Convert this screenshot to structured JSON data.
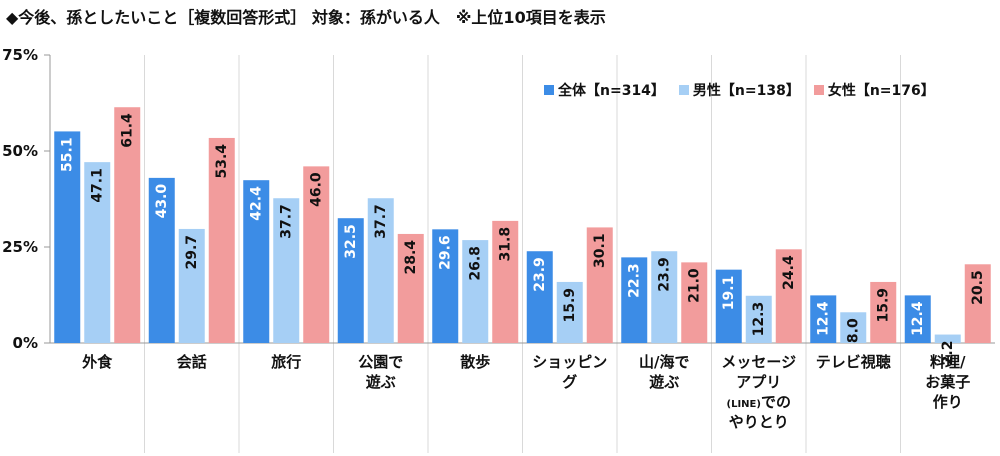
{
  "title": "◆今後、孫としたいこと［複数回答形式］ 対象：孫がいる人　※上位10項目を表示",
  "colors": {
    "series": [
      "#3c8ce6",
      "#a6cff5",
      "#f29c9c"
    ],
    "label_on_dark": "#ffffff",
    "label_on_light": "#111111",
    "grid": "#d9d9d9",
    "axis": "#999999"
  },
  "chart_data": {
    "type": "bar",
    "title": "◆今後、孫としたいこと［複数回答形式］ 対象：孫がいる人　※上位10項目を表示",
    "xlabel": "",
    "ylabel": "",
    "ylim": [
      0,
      75
    ],
    "yticks": [
      "0%",
      "25%",
      "50%",
      "75%"
    ],
    "ytick_values": [
      0,
      25,
      50,
      75
    ],
    "grid": false,
    "legend_position": "top-right",
    "categories": [
      [
        "外食"
      ],
      [
        "会話"
      ],
      [
        "旅行"
      ],
      [
        "公園で",
        "遊ぶ"
      ],
      [
        "散歩"
      ],
      [
        "ショッピン",
        "グ"
      ],
      [
        "山/海で",
        "遊ぶ"
      ],
      [
        "メッセージ",
        "アプリ",
        "(LINE)での",
        "やりとり"
      ],
      [
        "テレビ視聴"
      ],
      [
        "料理/",
        "お菓子",
        "作り"
      ]
    ],
    "series": [
      {
        "name": "全体【n=314】",
        "values": [
          55.1,
          43.0,
          42.4,
          32.5,
          29.6,
          23.9,
          22.3,
          19.1,
          12.4,
          12.4
        ]
      },
      {
        "name": "男性【n=138】",
        "values": [
          47.1,
          29.7,
          37.7,
          37.7,
          26.8,
          15.9,
          23.9,
          12.3,
          8.0,
          2.2
        ]
      },
      {
        "name": "女性【n=176】",
        "values": [
          61.4,
          53.4,
          46.0,
          28.4,
          31.8,
          30.1,
          21.0,
          24.4,
          15.9,
          20.5
        ]
      }
    ]
  }
}
